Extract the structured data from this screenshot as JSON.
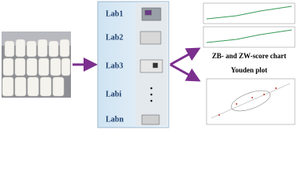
{
  "labs": [
    "Lab1",
    "Lab2",
    "Lab3",
    "Labi",
    "Labn"
  ],
  "outputs": [
    {
      "label": "ZB- and ZW-score chart"
    },
    {
      "label": "Youden plot"
    }
  ]
}
